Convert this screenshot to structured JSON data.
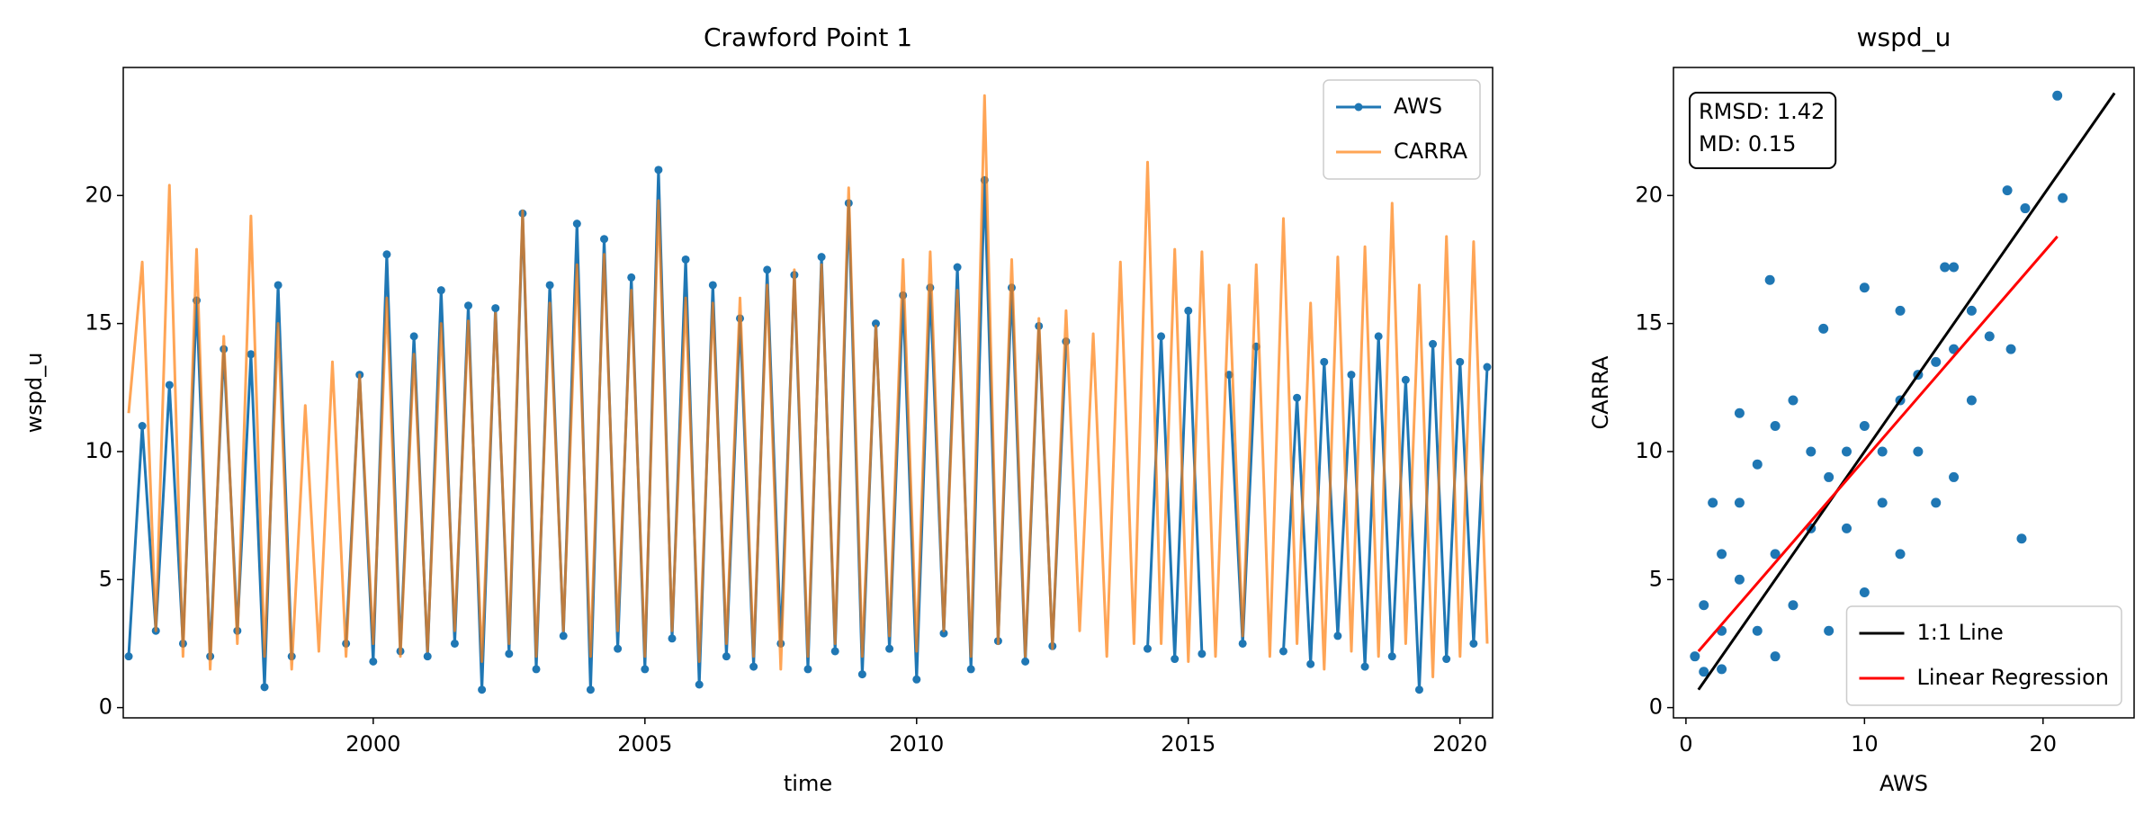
{
  "chart_data": [
    {
      "type": "line",
      "title": "Crawford Point 1",
      "xlabel": "time",
      "ylabel": "wspd_u",
      "x": [
        1995.5,
        1995.75,
        1996,
        1996.25,
        1996.5,
        1996.75,
        1997,
        1997.25,
        1997.5,
        1997.75,
        1998,
        1998.25,
        1998.5,
        1998.75,
        1999,
        1999.25,
        1999.5,
        1999.75,
        2000,
        2000.25,
        2000.5,
        2000.75,
        2001,
        2001.25,
        2001.5,
        2001.75,
        2002,
        2002.25,
        2002.5,
        2002.75,
        2003,
        2003.25,
        2003.5,
        2003.75,
        2004,
        2004.25,
        2004.5,
        2004.75,
        2005,
        2005.25,
        2005.5,
        2005.75,
        2006,
        2006.25,
        2006.5,
        2006.75,
        2007,
        2007.25,
        2007.5,
        2007.75,
        2008,
        2008.25,
        2008.5,
        2008.75,
        2009,
        2009.25,
        2009.5,
        2009.75,
        2010,
        2010.25,
        2010.5,
        2010.75,
        2011,
        2011.25,
        2011.5,
        2011.75,
        2012,
        2012.25,
        2012.5,
        2012.75,
        2013,
        2013.25,
        2013.5,
        2013.75,
        2014,
        2014.25,
        2014.5,
        2014.75,
        2015,
        2015.25,
        2015.5,
        2015.75,
        2016,
        2016.25,
        2016.5,
        2016.75,
        2017,
        2017.25,
        2017.5,
        2017.75,
        2018,
        2018.25,
        2018.5,
        2018.75,
        2019,
        2019.25,
        2019.5,
        2019.75,
        2020,
        2020.25,
        2020.5
      ],
      "series": [
        {
          "name": "AWS",
          "color": "#1f77b4",
          "marker": true,
          "opacity": 1,
          "values": [
            2,
            11,
            3,
            12.6,
            2.5,
            15.9,
            2,
            14,
            3,
            13.8,
            0.8,
            16.5,
            2,
            null,
            null,
            null,
            2.5,
            13,
            1.8,
            17.7,
            2.2,
            14.5,
            2,
            16.3,
            2.5,
            15.7,
            0.7,
            15.6,
            2.1,
            19.3,
            1.5,
            16.5,
            2.8,
            18.9,
            0.7,
            18.3,
            2.3,
            16.8,
            1.5,
            21,
            2.7,
            17.5,
            0.9,
            16.5,
            2,
            15.2,
            1.6,
            17.1,
            2.5,
            16.9,
            1.5,
            17.6,
            2.2,
            19.7,
            1.3,
            15,
            2.3,
            16.1,
            1.1,
            16.4,
            2.9,
            17.2,
            1.5,
            20.6,
            2.6,
            16.4,
            1.8,
            14.9,
            2.4,
            14.3,
            null,
            null,
            null,
            null,
            null,
            2.3,
            14.5,
            1.9,
            15.5,
            2.1,
            null,
            13,
            2.5,
            14.1,
            null,
            2.2,
            12.1,
            1.7,
            13.5,
            2.8,
            13,
            1.6,
            14.5,
            2,
            12.8,
            0.7,
            14.2,
            1.9,
            13.5,
            2.5,
            13.3
          ]
        },
        {
          "name": "CARRA",
          "color": "#ff7f0e",
          "marker": false,
          "opacity": 0.7,
          "values": [
            11.5,
            17.4,
            3,
            20.4,
            2,
            17.9,
            1.5,
            14.5,
            2.5,
            19.2,
            2,
            15,
            1.5,
            11.8,
            2.2,
            13.5,
            2,
            13,
            2.5,
            16,
            2,
            13.8,
            2.2,
            15,
            3,
            15.1,
            1.8,
            15.4,
            2.5,
            19.4,
            2,
            15.8,
            3,
            17.3,
            2,
            17.7,
            3,
            16.3,
            2,
            19.8,
            3,
            16,
            1.8,
            15.8,
            2.5,
            16,
            2,
            16.5,
            1.5,
            17.1,
            2,
            17.3,
            2.5,
            20.3,
            2,
            14.9,
            2.8,
            17.5,
            2.2,
            17.8,
            3,
            16.3,
            2,
            23.9,
            2.5,
            17.5,
            2,
            15.2,
            2.3,
            15.5,
            3,
            14.6,
            2,
            17.4,
            2.5,
            21.3,
            2.5,
            17.9,
            1.8,
            17.8,
            2,
            16.5,
            2.8,
            17.3,
            2,
            19.1,
            2.5,
            15.8,
            1.5,
            17.6,
            2.2,
            18,
            2,
            19.7,
            2.5,
            16.5,
            1.2,
            18.4,
            2,
            18.2,
            2.5
          ]
        }
      ],
      "xlim": [
        1995.4,
        2020.6
      ],
      "ylim": [
        -0.4,
        25
      ],
      "xticks": [
        2000,
        2005,
        2010,
        2015,
        2020
      ],
      "yticks": [
        0,
        5,
        10,
        15,
        20
      ],
      "legend": "upper right"
    },
    {
      "type": "scatter",
      "title": "wspd_u",
      "xlabel": "AWS",
      "ylabel": "CARRA",
      "series": [
        {
          "color": "#1f77b4",
          "x": [
            4.7,
            7.7,
            10,
            12,
            14.5,
            15,
            16,
            17,
            18,
            19,
            20.8,
            21.1,
            18.2,
            18.8,
            14,
            10,
            8,
            5,
            2,
            1,
            0.5,
            1,
            2,
            3,
            4,
            5,
            6,
            7,
            8,
            9,
            10,
            11,
            12,
            13,
            14,
            15,
            3,
            5,
            7,
            9,
            11,
            13,
            6,
            4,
            2,
            1.5,
            3,
            12,
            15,
            16
          ],
          "values": [
            16.7,
            14.8,
            16.4,
            15.5,
            17.2,
            17.2,
            15.5,
            14.5,
            20.2,
            19.5,
            23.9,
            19.9,
            14,
            6.6,
            8,
            4.5,
            3,
            2,
            1.5,
            1.4,
            2,
            4,
            6,
            8,
            9.5,
            11,
            12,
            10,
            9,
            10,
            11,
            10,
            12,
            13,
            13.5,
            14,
            5,
            6,
            7,
            7,
            8,
            10,
            4,
            3,
            3,
            8,
            11.5,
            6,
            9,
            12
          ]
        }
      ],
      "lines": [
        {
          "name": "1:1 Line",
          "color": "#000000",
          "x": [
            0.7,
            24
          ],
          "values": [
            0.7,
            24
          ]
        },
        {
          "name": "Linear Regression",
          "color": "#ff0000",
          "x": [
            0.7,
            20.8
          ],
          "values": [
            2.2,
            18.4
          ]
        }
      ],
      "annotations": [
        "RMSD: 1.42",
        "MD: 0.15"
      ],
      "xlim": [
        -0.7,
        25.1
      ],
      "ylim": [
        -0.4,
        25
      ],
      "xticks": [
        0,
        10,
        20
      ],
      "yticks": [
        0,
        5,
        10,
        15,
        20
      ],
      "legend": "lower right"
    }
  ]
}
